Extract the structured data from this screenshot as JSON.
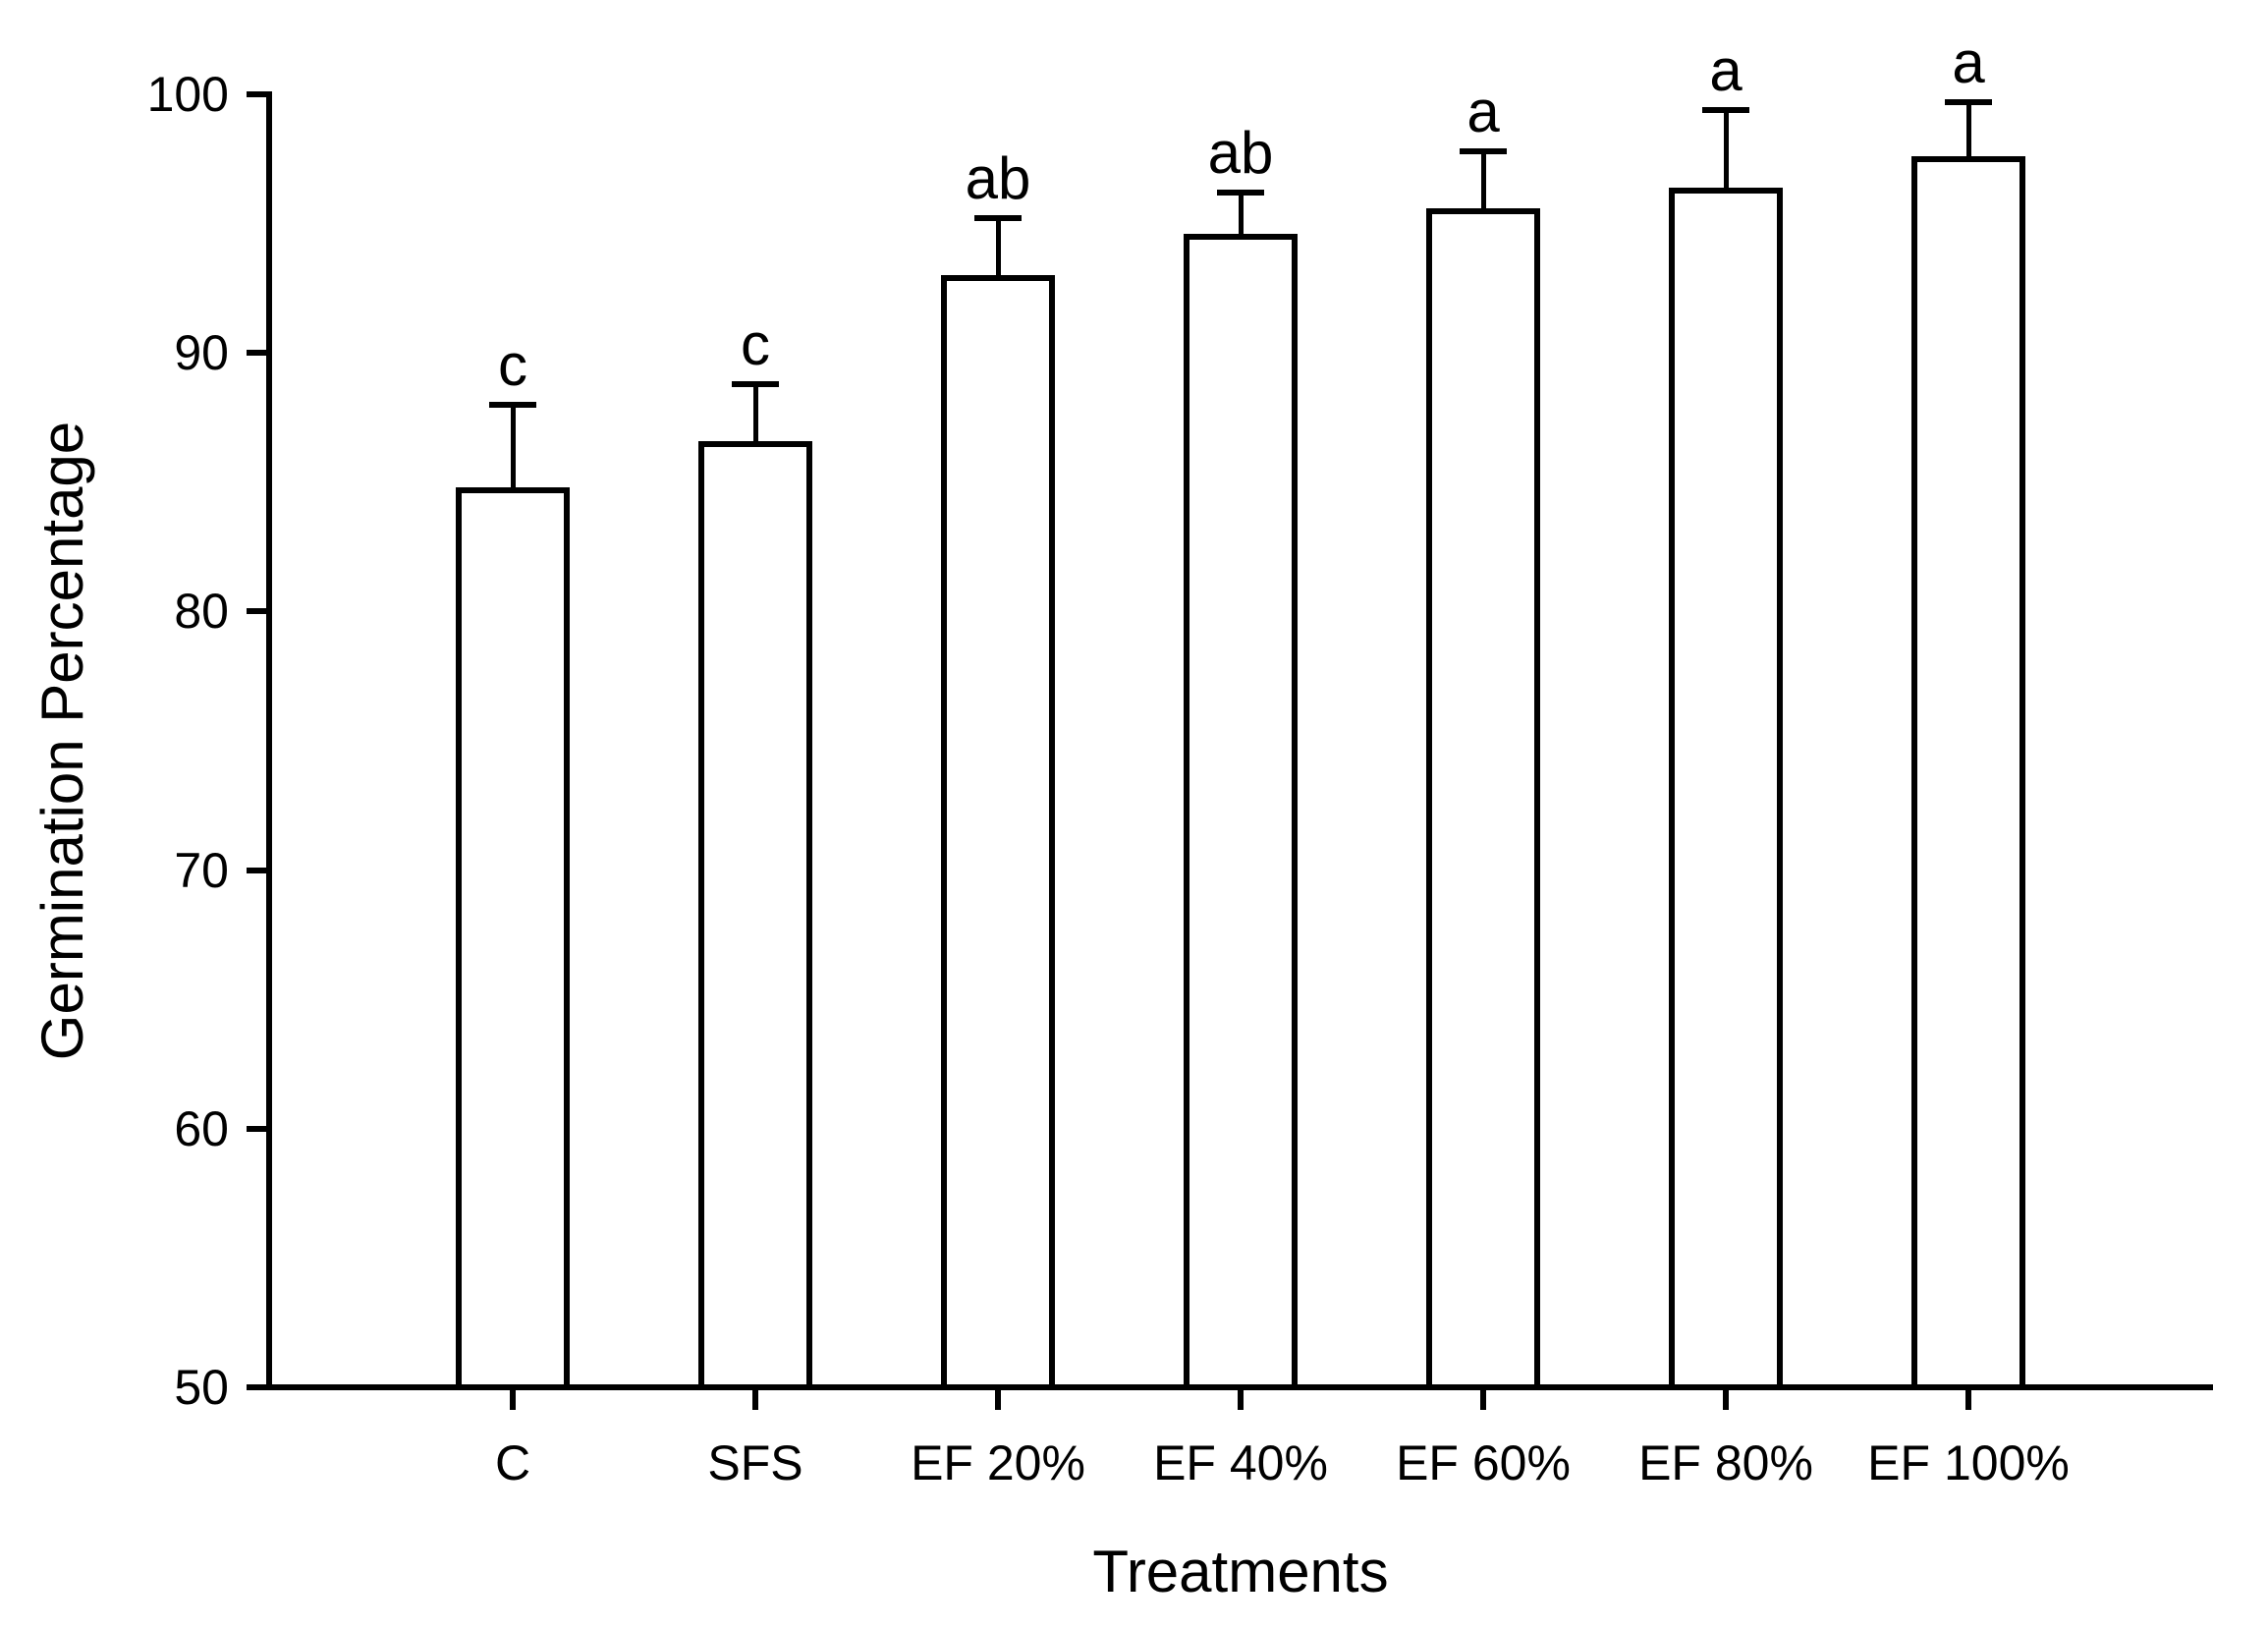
{
  "figure": {
    "background_color": "#ffffff",
    "line_color": "#000000"
  },
  "chart_data": {
    "type": "bar",
    "title": "",
    "xlabel": "Treatments",
    "ylabel": "Germination Percentage",
    "categories": [
      "C",
      "SFS",
      "EF 20%",
      "EF 40%",
      "EF 60%",
      "EF 80%",
      "EF 100%"
    ],
    "values": [
      84.8,
      86.6,
      93.0,
      94.6,
      95.6,
      96.4,
      97.6
    ],
    "errors": [
      3.2,
      2.2,
      2.2,
      1.6,
      2.2,
      3.0,
      2.1
    ],
    "error_bars": "upper-only-with-cap",
    "sig_letters": [
      "c",
      "c",
      "ab",
      "ab",
      "a",
      "a",
      "a"
    ],
    "ylim": [
      50,
      100
    ],
    "yticks": [
      100,
      90,
      80,
      70,
      60,
      50
    ],
    "bar_fill": "#ffffff",
    "bar_stroke": "#000000",
    "grid": false,
    "legend": false
  }
}
